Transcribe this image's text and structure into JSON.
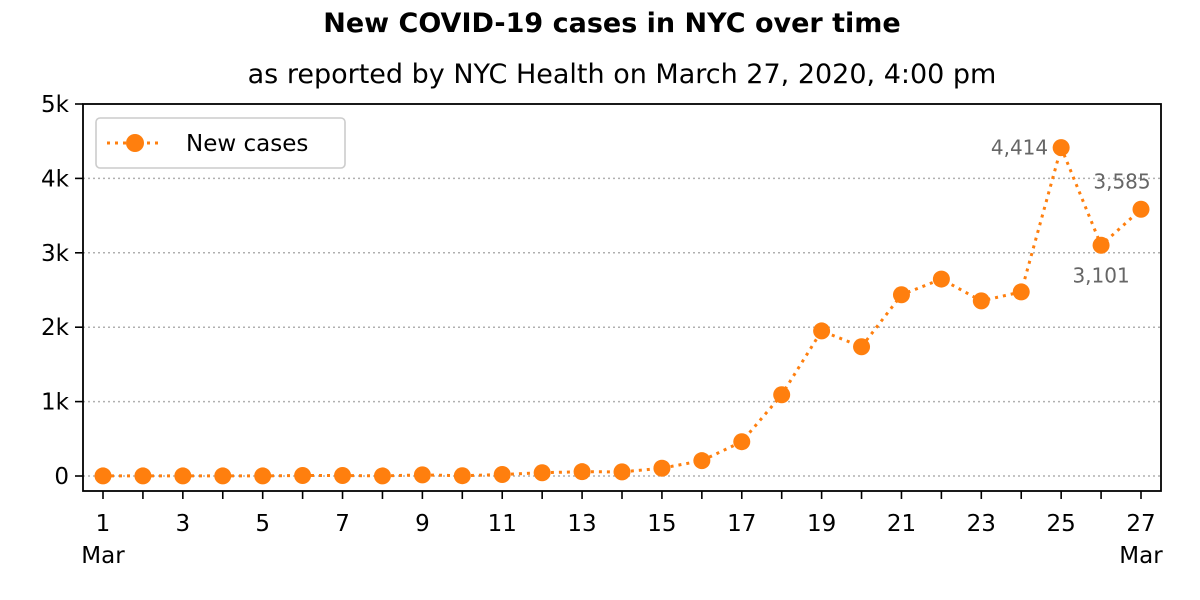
{
  "chart_data": {
    "type": "line",
    "title": "New COVID-19 cases in NYC over time",
    "subtitle": "as reported by NYC Health on March 27, 2020, 4:00 pm",
    "xlabel": "",
    "ylabel": "",
    "x": [
      1,
      2,
      3,
      4,
      5,
      6,
      7,
      8,
      9,
      10,
      11,
      12,
      13,
      14,
      15,
      16,
      17,
      18,
      19,
      20,
      21,
      22,
      23,
      24,
      25,
      26,
      27
    ],
    "xlim": [
      1,
      27
    ],
    "ylim": [
      0,
      5000
    ],
    "x_tick_values": [
      1,
      3,
      5,
      7,
      9,
      11,
      13,
      15,
      17,
      19,
      21,
      23,
      25,
      27
    ],
    "x_tick_labels": [
      "1",
      "3",
      "5",
      "7",
      "9",
      "11",
      "13",
      "15",
      "17",
      "19",
      "21",
      "23",
      "25",
      "27"
    ],
    "x_month_labels": [
      {
        "x": 1,
        "label": "Mar"
      },
      {
        "x": 27,
        "label": "Mar"
      }
    ],
    "y_tick_values": [
      0,
      1000,
      2000,
      3000,
      4000,
      5000
    ],
    "y_tick_labels": [
      "0",
      "1k",
      "2k",
      "3k",
      "4k",
      "5k"
    ],
    "grid": "horizontal dotted",
    "legend": "top-left",
    "series": [
      {
        "name": "New cases",
        "color": "#ff7f0e",
        "line_style": "dotted",
        "marker": "circle",
        "values": [
          1,
          1,
          1,
          1,
          1,
          7,
          7,
          1,
          15,
          4,
          20,
          44,
          58,
          55,
          105,
          206,
          461,
          1092,
          1950,
          1737,
          2436,
          2647,
          2354,
          2474,
          4414,
          3101,
          3585
        ]
      }
    ],
    "annotations": [
      {
        "x": 25,
        "y": 4414,
        "text": "4,414",
        "position": "left"
      },
      {
        "x": 26,
        "y": 3101,
        "text": "3,101",
        "position": "below"
      },
      {
        "x": 27,
        "y": 3585,
        "text": "3,585",
        "position": "above"
      }
    ]
  }
}
